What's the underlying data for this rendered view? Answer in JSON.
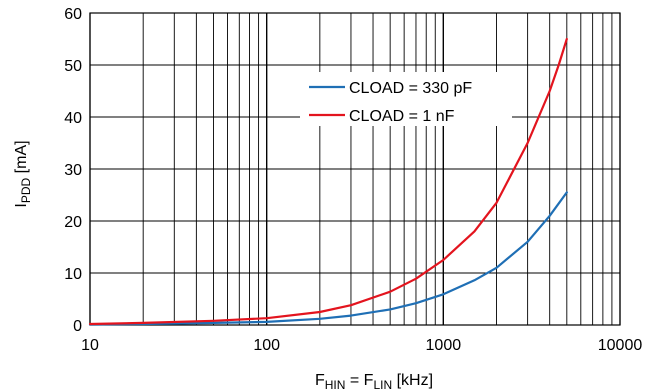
{
  "chart_data": {
    "type": "line",
    "xscale": "log",
    "xlim": [
      10,
      10000
    ],
    "ylim": [
      0,
      60
    ],
    "grid": true,
    "legend_position": "upper-center",
    "x_ticks": [
      10,
      100,
      1000,
      10000
    ],
    "x_tick_labels": [
      "10",
      "100",
      "1000",
      "10000"
    ],
    "y_ticks": [
      0,
      10,
      20,
      30,
      40,
      50,
      60
    ],
    "y_tick_labels": [
      "0",
      "10",
      "20",
      "30",
      "40",
      "50",
      "60"
    ],
    "xlabel": {
      "pre_main": "F",
      "pre_sub": "HIN",
      "mid": " = F",
      "post_sub": "LIN",
      "post": " [kHz]"
    },
    "ylabel": {
      "main": "I",
      "sub": "PDD",
      "post": " [mA]"
    },
    "series": [
      {
        "name": "CLOAD = 330 pF",
        "color": "#1f6fb5",
        "x": [
          10,
          20,
          50,
          100,
          200,
          300,
          500,
          700,
          1000,
          1500,
          2000,
          3000,
          4000,
          5000
        ],
        "y": [
          0.1,
          0.2,
          0.4,
          0.6,
          1.2,
          1.8,
          3.0,
          4.2,
          5.9,
          8.6,
          11.0,
          16.0,
          21.0,
          25.5
        ]
      },
      {
        "name": "CLOAD = 1 nF",
        "color": "#e3141e",
        "x": [
          10,
          20,
          50,
          100,
          200,
          300,
          500,
          700,
          1000,
          1500,
          2000,
          3000,
          4000,
          4500,
          5000
        ],
        "y": [
          0.2,
          0.4,
          0.8,
          1.3,
          2.5,
          3.8,
          6.4,
          8.9,
          12.5,
          18.0,
          23.5,
          35.0,
          45.0,
          50.0,
          55.0
        ]
      }
    ]
  }
}
